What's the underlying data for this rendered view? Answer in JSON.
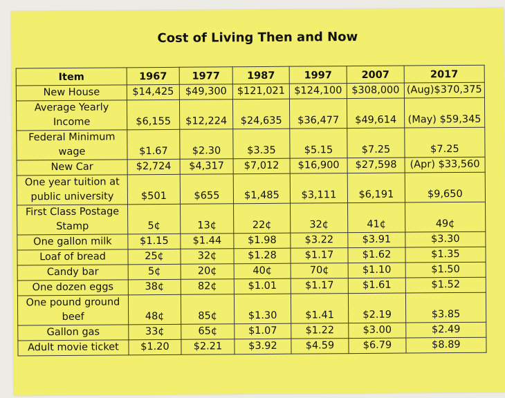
{
  "title": "Cost of Living Then and Now",
  "table": {
    "headers": [
      "Item",
      "1967",
      "1977",
      "1987",
      "1997",
      "2007",
      "2017"
    ],
    "rows": [
      {
        "item": "New House",
        "values": [
          "$14,425",
          "$49,300",
          "$121,021",
          "$124,100",
          "$308,000",
          "(Aug)$370,375"
        ]
      },
      {
        "item": "Average Yearly Income",
        "values": [
          "$6,155",
          "$12,224",
          "$24,635",
          "$36,477",
          "$49,614",
          "(May) $59,345"
        ]
      },
      {
        "item": "Federal Minimum wage",
        "values": [
          "$1.67",
          "$2.30",
          "$3.35",
          "$5.15",
          "$7.25",
          "$7.25"
        ]
      },
      {
        "item": "New Car",
        "values": [
          "$2,724",
          "$4,317",
          "$7,012",
          "$16,900",
          "$27,598",
          "(Apr) $33,560"
        ]
      },
      {
        "item": "One year tuition at public university",
        "values": [
          "$501",
          "$655",
          "$1,485",
          "$3,111",
          "$6,191",
          "$9,650"
        ]
      },
      {
        "item": "First Class Postage Stamp",
        "values": [
          "5¢",
          "13¢",
          "22¢",
          "32¢",
          "41¢",
          "49¢"
        ]
      },
      {
        "item": "One gallon milk",
        "values": [
          "$1.15",
          "$1.44",
          "$1.98",
          "$3.22",
          "$3.91",
          "$3.30"
        ]
      },
      {
        "item": "Loaf of bread",
        "values": [
          "25¢",
          "32¢",
          "$1.28",
          "$1.17",
          "$1.62",
          "$1.35"
        ]
      },
      {
        "item": "Candy bar",
        "values": [
          "5¢",
          "20¢",
          "40¢",
          "70¢",
          "$1.10",
          "$1.50"
        ]
      },
      {
        "item": "One dozen eggs",
        "values": [
          "38¢",
          "82¢",
          "$1.01",
          "$1.17",
          "$1.61",
          "$1.52"
        ]
      },
      {
        "item": "One pound ground beef",
        "values": [
          "48¢",
          "85¢",
          "$1.30",
          "$1.41",
          "$2.19",
          "$3.85"
        ]
      },
      {
        "item": "Gallon gas",
        "values": [
          "33¢",
          "65¢",
          "$1.07",
          "$1.22",
          "$3.00",
          "$2.49"
        ]
      },
      {
        "item": "Adult movie ticket",
        "values": [
          "$1.20",
          "$2.21",
          "$3.92",
          "$4.59",
          "$6.79",
          "$8.89"
        ]
      }
    ]
  }
}
